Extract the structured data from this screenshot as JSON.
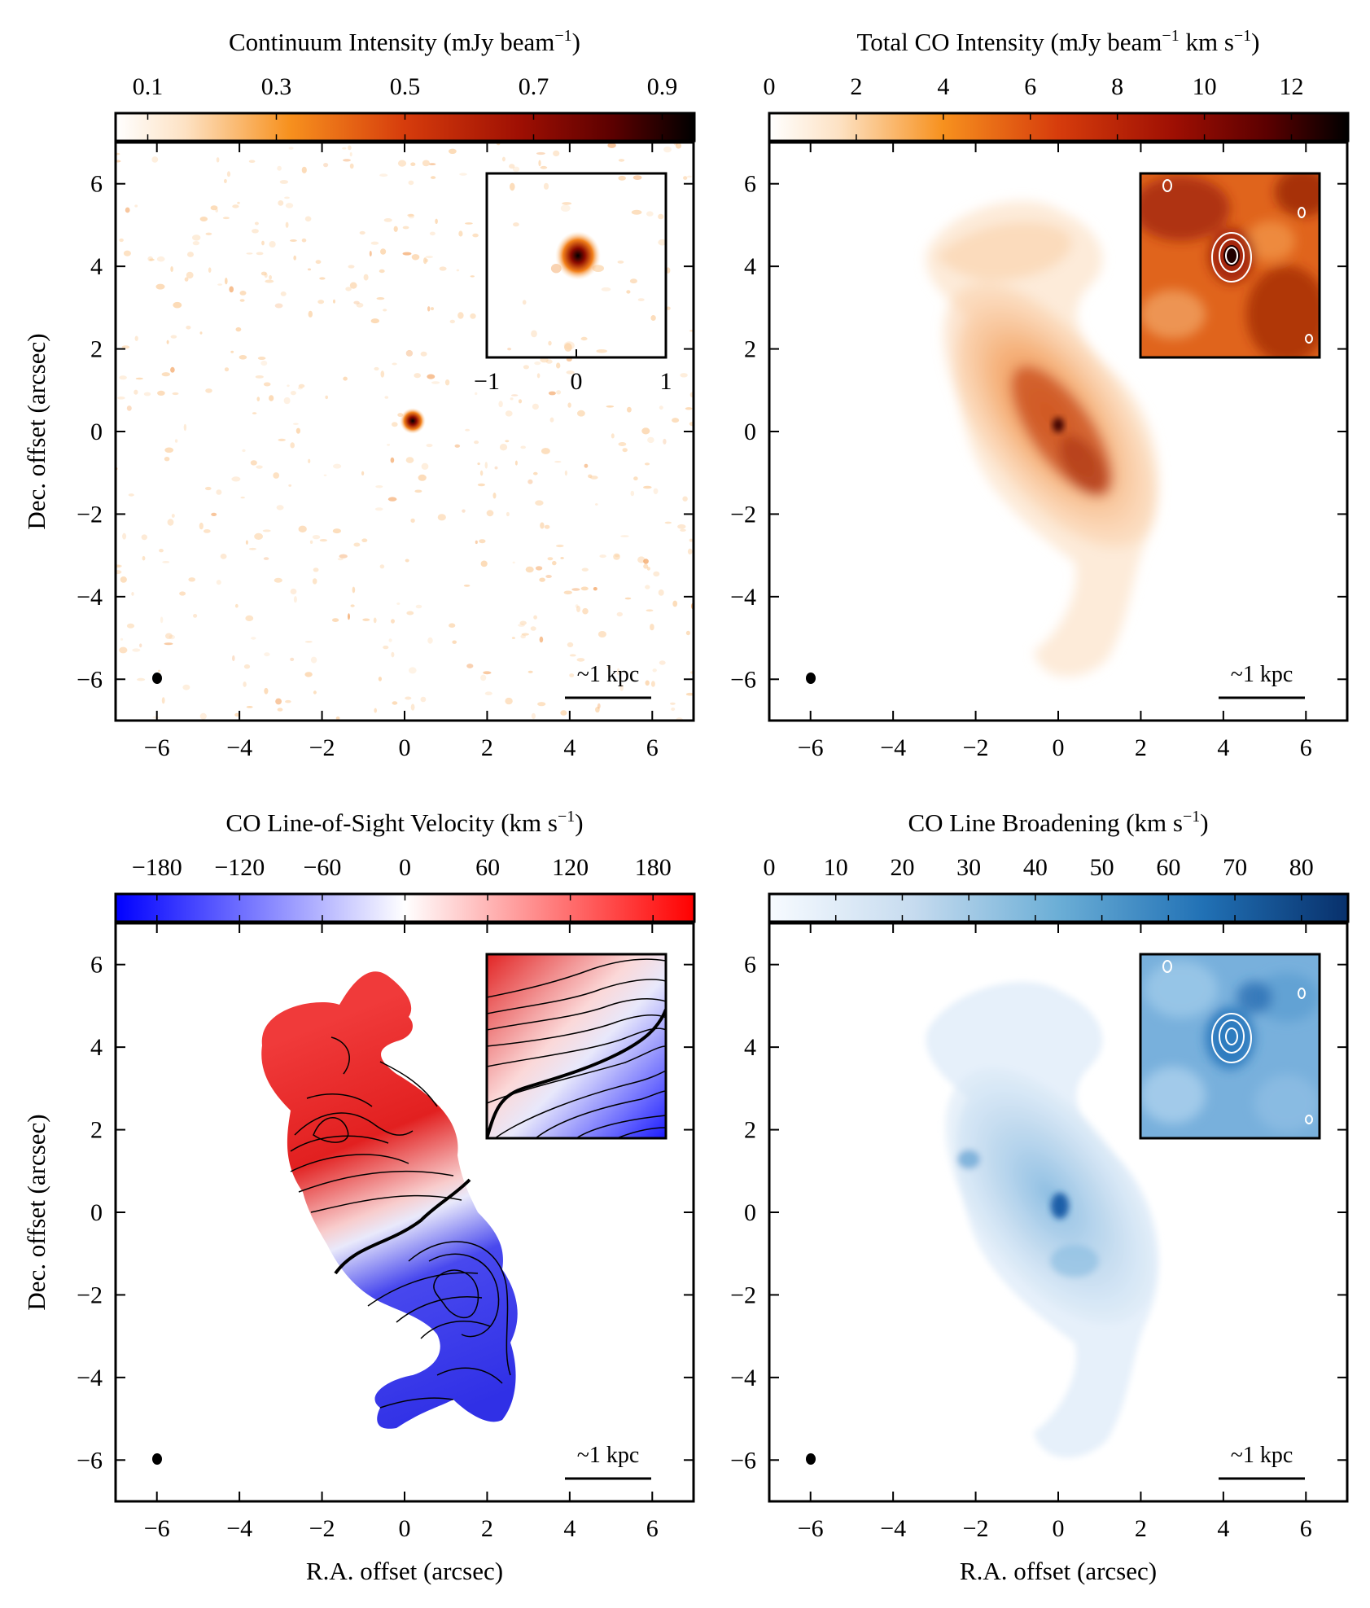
{
  "chart_data": [
    {
      "type": "heatmap",
      "panel": "top-left",
      "title": "Continuum Intensity (mJy beam",
      "title_sup": "−1",
      "title_end": ")",
      "colorbar": {
        "cmap": "gist_heat_r",
        "range": [
          0.05,
          0.95
        ],
        "ticks": [
          0.1,
          0.3,
          0.5,
          0.7,
          0.9
        ],
        "tick_labels": [
          "0.1",
          "0.3",
          "0.5",
          "0.7",
          "0.9"
        ]
      },
      "xlabel": "",
      "ylabel": "Dec. offset (arcsec)",
      "xlim": [
        -7,
        7
      ],
      "ylim": [
        -7,
        7
      ],
      "xticks": [
        -6,
        -4,
        -2,
        0,
        2,
        4,
        6
      ],
      "yticks": [
        6,
        4,
        2,
        0,
        -2,
        -4,
        -6
      ],
      "xtick_labels": [
        "−6",
        "−4",
        "−2",
        "0",
        "2",
        "4",
        "6"
      ],
      "ytick_labels": [
        "6",
        "4",
        "2",
        "0",
        "−2",
        "−4",
        "−6"
      ],
      "peak": {
        "x": 0.2,
        "y": 0.25
      },
      "inset": {
        "xticks": [
          -1,
          0,
          1
        ],
        "xtick_labels": [
          "−1",
          "0",
          "1"
        ]
      },
      "scalebar_label": "~1 kpc",
      "beam": {
        "x": -6,
        "y": -6
      }
    },
    {
      "type": "heatmap",
      "panel": "top-right",
      "title": "Total CO Intensity (mJy beam",
      "title_sup": "−1",
      "title_mid": " km s",
      "title_sup2": "−1",
      "title_end": ")",
      "colorbar": {
        "cmap": "gist_heat_r",
        "range": [
          0,
          13.3
        ],
        "ticks": [
          0,
          2,
          4,
          6,
          8,
          10,
          12
        ],
        "tick_labels": [
          "0",
          "2",
          "4",
          "6",
          "8",
          "10",
          "12"
        ]
      },
      "xlim": [
        -7,
        7
      ],
      "ylim": [
        -7,
        7
      ],
      "xticks": [
        -6,
        -4,
        -2,
        0,
        2,
        4,
        6
      ],
      "yticks": [
        6,
        4,
        2,
        0,
        -2,
        -4,
        -6
      ],
      "xtick_labels": [
        "−6",
        "−4",
        "−2",
        "0",
        "2",
        "4",
        "6"
      ],
      "ytick_labels": [
        "6",
        "4",
        "2",
        "0",
        "−2",
        "−4",
        "−6"
      ],
      "peak": {
        "x": 0,
        "y": 0.2
      },
      "scalebar_label": "~1 kpc",
      "beam": {
        "x": -6,
        "y": -6
      }
    },
    {
      "type": "heatmap",
      "panel": "bottom-left",
      "title": "CO Line-of-Sight Velocity (km s",
      "title_sup": "−1",
      "title_end": ")",
      "colorbar": {
        "cmap": "bwr",
        "range": [
          -210,
          210
        ],
        "ticks": [
          -180,
          -120,
          -60,
          0,
          60,
          120,
          180
        ],
        "tick_labels": [
          "−180",
          "−120",
          "−60",
          "0",
          "60",
          "120",
          "180"
        ]
      },
      "xlabel": "R.A. offset (arcsec)",
      "ylabel": "Dec. offset (arcsec)",
      "xlim": [
        -7,
        7
      ],
      "ylim": [
        -7,
        7
      ],
      "xticks": [
        -6,
        -4,
        -2,
        0,
        2,
        4,
        6
      ],
      "yticks": [
        6,
        4,
        2,
        0,
        -2,
        -4,
        -6
      ],
      "xtick_labels": [
        "−6",
        "−4",
        "−2",
        "0",
        "2",
        "4",
        "6"
      ],
      "ytick_labels": [
        "6",
        "4",
        "2",
        "0",
        "−2",
        "−4",
        "−6"
      ],
      "scalebar_label": "~1 kpc",
      "beam": {
        "x": -6,
        "y": -6
      }
    },
    {
      "type": "heatmap",
      "panel": "bottom-right",
      "title": "CO Line Broadening (km s",
      "title_sup": "−1",
      "title_end": ")",
      "colorbar": {
        "cmap": "Blues",
        "range": [
          0,
          87
        ],
        "ticks": [
          0,
          10,
          20,
          30,
          40,
          50,
          60,
          70,
          80
        ],
        "tick_labels": [
          "0",
          "10",
          "20",
          "30",
          "40",
          "50",
          "60",
          "70",
          "80"
        ]
      },
      "xlabel": "R.A. offset (arcsec)",
      "xlim": [
        -7,
        7
      ],
      "ylim": [
        -7,
        7
      ],
      "xticks": [
        -6,
        -4,
        -2,
        0,
        2,
        4,
        6
      ],
      "yticks": [
        6,
        4,
        2,
        0,
        -2,
        -4,
        -6
      ],
      "xtick_labels": [
        "−6",
        "−4",
        "−2",
        "0",
        "2",
        "4",
        "6"
      ],
      "ytick_labels": [
        "6",
        "4",
        "2",
        "0",
        "−2",
        "−4",
        "−6"
      ],
      "peak": {
        "x": 0,
        "y": 0.2
      },
      "scalebar_label": "~1 kpc",
      "beam": {
        "x": -6,
        "y": -6
      }
    }
  ]
}
